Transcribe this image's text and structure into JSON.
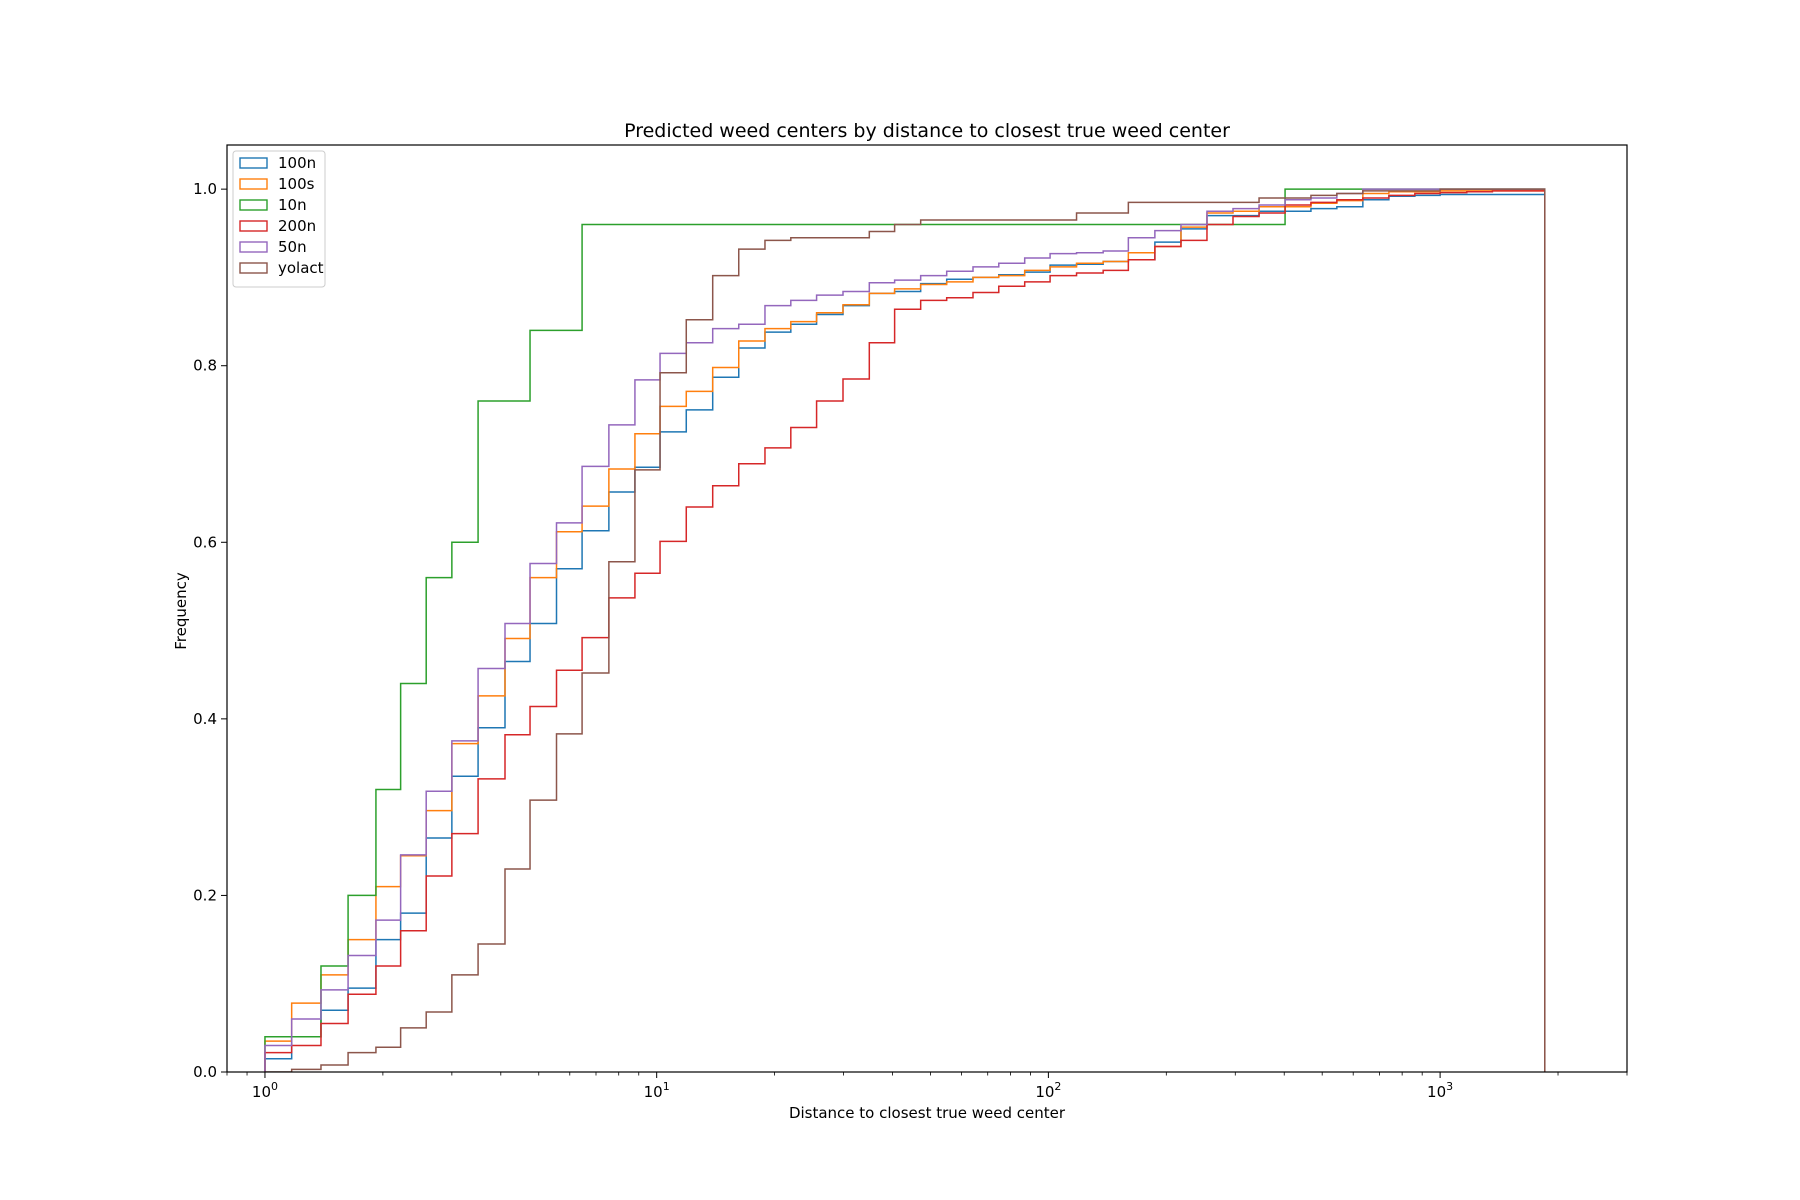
{
  "chart_data": {
    "type": "line",
    "title": "Predicted weed centers by distance to closest true weed center",
    "xlabel": "Distance to closest true weed center",
    "ylabel": "Frequency",
    "xscale": "log",
    "xlim": [
      0.8,
      3000
    ],
    "ylim": [
      0.0,
      1.05
    ],
    "grid": false,
    "legend_position": "top-left",
    "x_ticks": [
      {
        "value": 1,
        "base": "10",
        "exp": "0"
      },
      {
        "value": 10,
        "base": "10",
        "exp": "1"
      },
      {
        "value": 100,
        "base": "10",
        "exp": "2"
      },
      {
        "value": 1000,
        "base": "10",
        "exp": "3"
      }
    ],
    "y_ticks": [
      {
        "value": 0.0,
        "label": "0.0"
      },
      {
        "value": 0.2,
        "label": "0.2"
      },
      {
        "value": 0.4,
        "label": "0.4"
      },
      {
        "value": 0.6,
        "label": "0.6"
      },
      {
        "value": 0.8,
        "label": "0.8"
      },
      {
        "value": 1.0,
        "label": "1.0"
      }
    ],
    "bin_edges": [
      1.0,
      1.17,
      1.39,
      1.63,
      1.92,
      2.22,
      2.58,
      3.0,
      3.5,
      4.1,
      4.75,
      5.55,
      6.45,
      7.55,
      8.8,
      10.2,
      11.9,
      13.9,
      16.2,
      18.9,
      22,
      25.6,
      29.9,
      34.9,
      40.5,
      47.2,
      55,
      64.2,
      74.7,
      87,
      101,
      118,
      138,
      160,
      187,
      218,
      254,
      296,
      345,
      402,
      468,
      545,
      635,
      740,
      862,
      1000,
      1170,
      1360,
      1590,
      1850
    ],
    "series": [
      {
        "name": "100n",
        "color": "#1f77b4",
        "values": [
          0.015,
          0.04,
          0.07,
          0.095,
          0.15,
          0.18,
          0.265,
          0.335,
          0.39,
          0.465,
          0.508,
          0.57,
          0.613,
          0.657,
          0.685,
          0.725,
          0.75,
          0.787,
          0.82,
          0.838,
          0.847,
          0.858,
          0.868,
          0.882,
          0.884,
          0.893,
          0.898,
          0.9,
          0.903,
          0.906,
          0.914,
          0.915,
          0.918,
          0.92,
          0.94,
          0.955,
          0.97,
          0.97,
          0.975,
          0.975,
          0.978,
          0.98,
          0.988,
          0.992,
          0.993,
          0.994,
          0.994,
          0.994,
          0.994
        ]
      },
      {
        "name": "100s",
        "color": "#ff7f0e",
        "values": [
          0.035,
          0.078,
          0.11,
          0.15,
          0.21,
          0.245,
          0.296,
          0.372,
          0.426,
          0.491,
          0.56,
          0.612,
          0.641,
          0.683,
          0.723,
          0.754,
          0.771,
          0.798,
          0.828,
          0.842,
          0.85,
          0.86,
          0.869,
          0.882,
          0.887,
          0.892,
          0.895,
          0.9,
          0.902,
          0.908,
          0.912,
          0.916,
          0.918,
          0.928,
          0.935,
          0.957,
          0.973,
          0.975,
          0.98,
          0.98,
          0.984,
          0.987,
          0.995,
          0.997,
          0.997,
          0.998,
          0.998,
          0.998,
          0.998
        ]
      },
      {
        "name": "10n",
        "color": "#2ca02c",
        "values": [
          0.04,
          0.04,
          0.12,
          0.2,
          0.32,
          0.44,
          0.56,
          0.6,
          0.76,
          0.76,
          0.84,
          0.84,
          0.96,
          0.96,
          0.96,
          0.96,
          0.96,
          0.96,
          0.96,
          0.96,
          0.96,
          0.96,
          0.96,
          0.96,
          0.96,
          0.96,
          0.96,
          0.96,
          0.96,
          0.96,
          0.96,
          0.96,
          0.96,
          0.96,
          0.96,
          0.96,
          0.96,
          0.96,
          0.96,
          1.0,
          1.0,
          1.0,
          1.0,
          1.0,
          1.0,
          1.0,
          1.0,
          1.0,
          1.0
        ]
      },
      {
        "name": "200n",
        "color": "#d62728",
        "values": [
          0.022,
          0.03,
          0.055,
          0.088,
          0.12,
          0.16,
          0.222,
          0.27,
          0.332,
          0.382,
          0.414,
          0.455,
          0.492,
          0.537,
          0.565,
          0.601,
          0.64,
          0.664,
          0.689,
          0.707,
          0.73,
          0.76,
          0.785,
          0.826,
          0.864,
          0.874,
          0.877,
          0.883,
          0.89,
          0.895,
          0.902,
          0.905,
          0.908,
          0.92,
          0.935,
          0.942,
          0.96,
          0.969,
          0.973,
          0.982,
          0.985,
          0.988,
          0.99,
          0.993,
          0.995,
          0.996,
          0.997,
          0.998,
          0.998
        ]
      },
      {
        "name": "50n",
        "color": "#9467bd",
        "values": [
          0.03,
          0.06,
          0.093,
          0.132,
          0.172,
          0.246,
          0.318,
          0.375,
          0.457,
          0.508,
          0.576,
          0.622,
          0.686,
          0.733,
          0.784,
          0.814,
          0.826,
          0.842,
          0.847,
          0.868,
          0.874,
          0.88,
          0.884,
          0.894,
          0.897,
          0.902,
          0.907,
          0.912,
          0.916,
          0.922,
          0.927,
          0.928,
          0.93,
          0.945,
          0.953,
          0.96,
          0.975,
          0.978,
          0.982,
          0.988,
          0.99,
          0.995,
          1.0,
          1.0,
          1.0,
          1.0,
          1.0,
          1.0,
          1.0
        ]
      },
      {
        "name": "yolact",
        "color": "#8c564b",
        "values": [
          0.0,
          0.003,
          0.008,
          0.022,
          0.028,
          0.05,
          0.068,
          0.11,
          0.145,
          0.23,
          0.308,
          0.383,
          0.452,
          0.578,
          0.682,
          0.792,
          0.852,
          0.902,
          0.932,
          0.942,
          0.945,
          0.945,
          0.945,
          0.952,
          0.96,
          0.965,
          0.965,
          0.965,
          0.965,
          0.965,
          0.965,
          0.973,
          0.973,
          0.985,
          0.985,
          0.985,
          0.985,
          0.985,
          0.99,
          0.99,
          0.993,
          0.995,
          0.998,
          0.998,
          0.998,
          1.0,
          1.0,
          1.0,
          1.0
        ]
      }
    ]
  }
}
